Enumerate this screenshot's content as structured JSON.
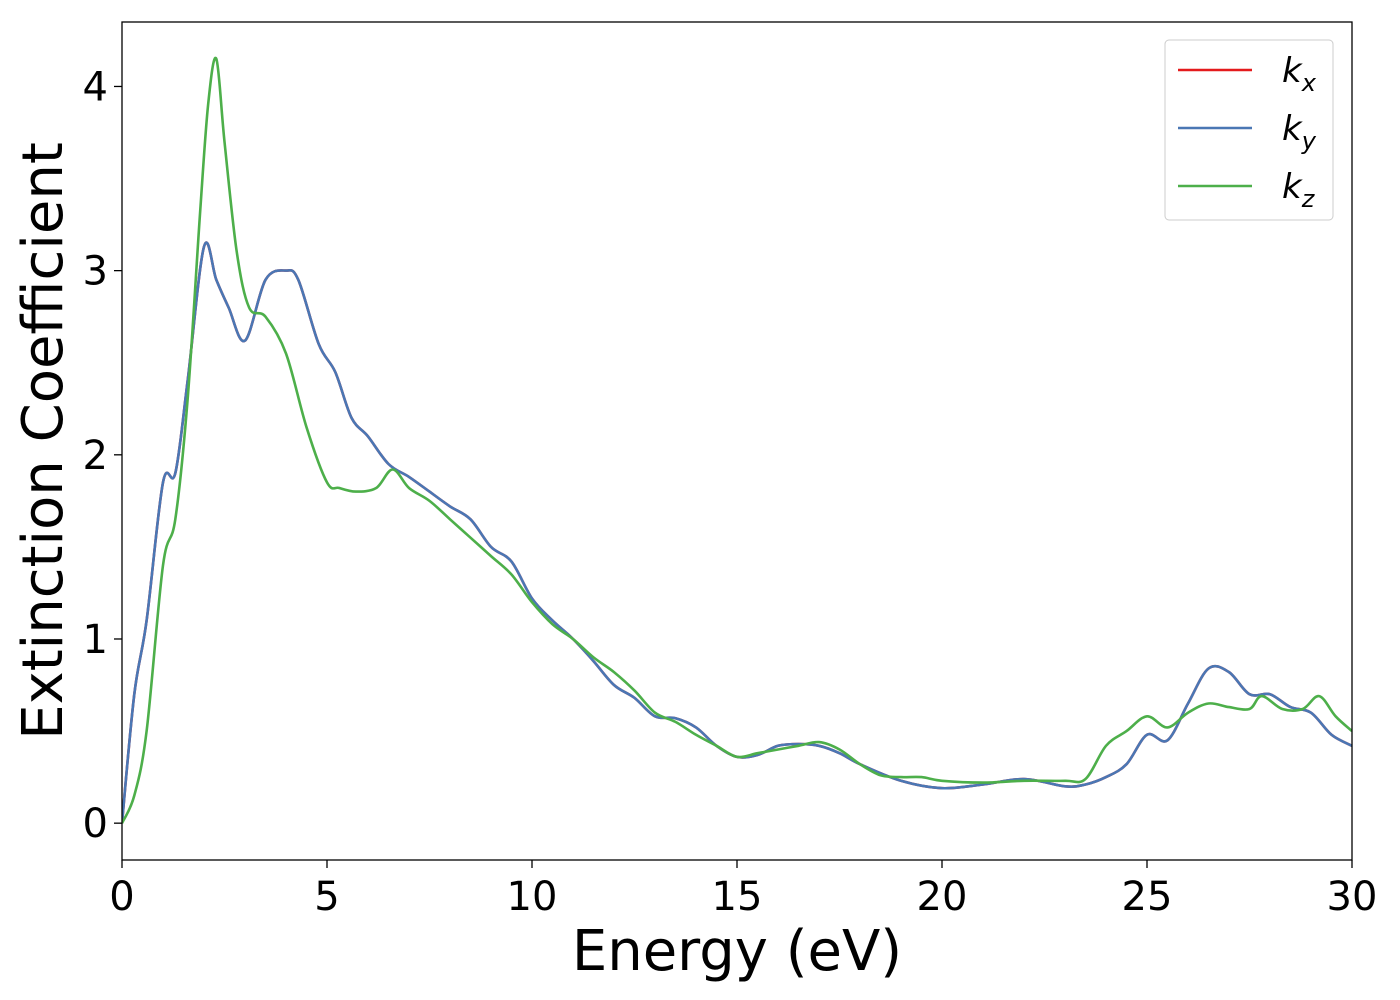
{
  "chart_data": {
    "type": "line",
    "title": "",
    "xlabel": "Energy (eV)",
    "ylabel": "Extinction Coefficient",
    "xlim": [
      0,
      30
    ],
    "ylim": [
      -0.2,
      4.35
    ],
    "xticks": [
      0,
      5,
      10,
      15,
      20,
      25,
      30
    ],
    "yticks": [
      0,
      1,
      2,
      3,
      4
    ],
    "grid": false,
    "legend": "top-right",
    "series": [
      {
        "name": "k_x",
        "label_main": "k",
        "label_sub": "x",
        "color": "#e41a1c",
        "x": [
          0,
          0.3,
          0.6,
          1.0,
          1.3,
          1.6,
          2.0,
          2.3,
          2.6,
          3.0,
          3.5,
          4.0,
          4.3,
          4.8,
          5.2,
          5.6,
          6.0,
          6.5,
          7.0,
          7.5,
          8.0,
          8.5,
          9.0,
          9.5,
          10.0,
          10.5,
          11.0,
          11.5,
          12.0,
          12.5,
          13.0,
          13.5,
          14.0,
          14.5,
          15.0,
          15.5,
          16.0,
          16.5,
          17.0,
          17.5,
          18.0,
          19.0,
          20.0,
          21.0,
          22.0,
          23.0,
          23.5,
          24.0,
          24.5,
          25.0,
          25.5,
          26.0,
          26.5,
          27.0,
          27.5,
          28.0,
          28.5,
          29.0,
          29.5,
          30.0
        ],
        "y": [
          0,
          0.7,
          1.1,
          1.85,
          1.9,
          2.4,
          3.13,
          2.95,
          2.8,
          2.62,
          2.95,
          3.0,
          2.95,
          2.6,
          2.45,
          2.2,
          2.1,
          1.95,
          1.88,
          1.8,
          1.72,
          1.65,
          1.5,
          1.42,
          1.22,
          1.1,
          1.0,
          0.88,
          0.75,
          0.68,
          0.58,
          0.57,
          0.52,
          0.42,
          0.36,
          0.37,
          0.42,
          0.43,
          0.42,
          0.38,
          0.32,
          0.23,
          0.19,
          0.21,
          0.24,
          0.2,
          0.21,
          0.25,
          0.32,
          0.48,
          0.45,
          0.65,
          0.84,
          0.82,
          0.7,
          0.7,
          0.63,
          0.6,
          0.48,
          0.42
        ]
      },
      {
        "name": "k_y",
        "label_main": "k",
        "label_sub": "y",
        "color": "#4a77b4",
        "x": [
          0,
          0.3,
          0.6,
          1.0,
          1.3,
          1.6,
          2.0,
          2.3,
          2.6,
          3.0,
          3.5,
          4.0,
          4.3,
          4.8,
          5.2,
          5.6,
          6.0,
          6.5,
          7.0,
          7.5,
          8.0,
          8.5,
          9.0,
          9.5,
          10.0,
          10.5,
          11.0,
          11.5,
          12.0,
          12.5,
          13.0,
          13.5,
          14.0,
          14.5,
          15.0,
          15.5,
          16.0,
          16.5,
          17.0,
          17.5,
          18.0,
          19.0,
          20.0,
          21.0,
          22.0,
          23.0,
          23.5,
          24.0,
          24.5,
          25.0,
          25.5,
          26.0,
          26.5,
          27.0,
          27.5,
          28.0,
          28.5,
          29.0,
          29.5,
          30.0
        ],
        "y": [
          0,
          0.7,
          1.1,
          1.85,
          1.9,
          2.4,
          3.13,
          2.95,
          2.8,
          2.62,
          2.95,
          3.0,
          2.95,
          2.6,
          2.45,
          2.2,
          2.1,
          1.95,
          1.88,
          1.8,
          1.72,
          1.65,
          1.5,
          1.42,
          1.22,
          1.1,
          1.0,
          0.88,
          0.75,
          0.68,
          0.58,
          0.57,
          0.52,
          0.42,
          0.36,
          0.37,
          0.42,
          0.43,
          0.42,
          0.38,
          0.32,
          0.23,
          0.19,
          0.21,
          0.24,
          0.2,
          0.21,
          0.25,
          0.32,
          0.48,
          0.45,
          0.65,
          0.84,
          0.82,
          0.7,
          0.7,
          0.63,
          0.6,
          0.48,
          0.42
        ]
      },
      {
        "name": "k_z",
        "label_main": "k",
        "label_sub": "z",
        "color": "#4daf4a",
        "x": [
          0,
          0.3,
          0.6,
          1.0,
          1.3,
          1.6,
          1.9,
          2.1,
          2.3,
          2.5,
          2.8,
          3.1,
          3.5,
          4.0,
          4.5,
          5.0,
          5.3,
          5.7,
          6.2,
          6.6,
          7.0,
          7.5,
          8.0,
          8.5,
          9.0,
          9.5,
          10.0,
          10.5,
          11.0,
          11.5,
          12.0,
          12.5,
          13.0,
          13.5,
          14.0,
          14.5,
          15.0,
          15.5,
          16.0,
          16.5,
          17.0,
          17.5,
          18.0,
          18.5,
          19.0,
          19.5,
          20.0,
          21.0,
          22.0,
          23.0,
          23.5,
          24.0,
          24.5,
          25.0,
          25.5,
          26.0,
          26.5,
          27.0,
          27.5,
          27.8,
          28.3,
          28.8,
          29.2,
          29.6,
          30.0
        ],
        "y": [
          0,
          0.15,
          0.5,
          1.4,
          1.65,
          2.3,
          3.3,
          3.9,
          4.15,
          3.7,
          3.1,
          2.8,
          2.75,
          2.55,
          2.15,
          1.85,
          1.82,
          1.8,
          1.82,
          1.92,
          1.82,
          1.75,
          1.65,
          1.55,
          1.45,
          1.35,
          1.2,
          1.08,
          1.0,
          0.9,
          0.82,
          0.72,
          0.6,
          0.55,
          0.48,
          0.42,
          0.36,
          0.38,
          0.4,
          0.42,
          0.44,
          0.4,
          0.32,
          0.26,
          0.25,
          0.25,
          0.23,
          0.22,
          0.23,
          0.23,
          0.24,
          0.42,
          0.5,
          0.58,
          0.52,
          0.6,
          0.65,
          0.63,
          0.62,
          0.69,
          0.62,
          0.62,
          0.69,
          0.58,
          0.5
        ]
      }
    ]
  }
}
